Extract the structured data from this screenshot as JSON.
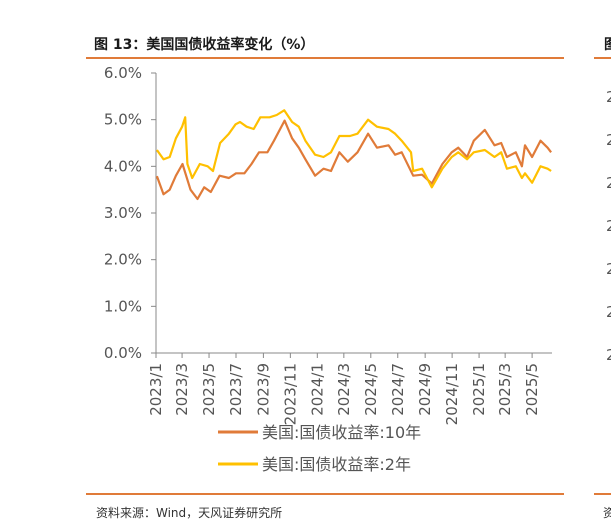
{
  "figure": {
    "title": "图 13：美国国债收益率变化（%）",
    "source": "资料来源：Wind，天风证券研究所",
    "right_title_fragment": "图",
    "right_source_fragment": "资",
    "right_ticks_fragment": [
      "2",
      "2",
      "2",
      "2",
      "2",
      "2",
      "2"
    ]
  },
  "colors": {
    "accent_rule": "#e07b39",
    "series_10y": "#e07b39",
    "series_2y": "#ffc000",
    "axis": "#888888"
  },
  "chart_data": {
    "type": "line",
    "ylim": [
      0,
      6
    ],
    "yticks": [
      "0.0%",
      "1.0%",
      "2.0%",
      "3.0%",
      "4.0%",
      "5.0%",
      "6.0%"
    ],
    "xlim": [
      "2023-01-01",
      "2025-06-15"
    ],
    "xticks": [
      "2023/1",
      "2023/3",
      "2023/5",
      "2023/7",
      "2023/9",
      "2023/11",
      "2024/1",
      "2024/3",
      "2024/5",
      "2024/7",
      "2024/9",
      "2024/11",
      "2025/1",
      "2025/3",
      "2025/5"
    ],
    "grid": false,
    "legend_position": "bottom",
    "series": [
      {
        "name": "美国:国债收益率:10年",
        "color": "#e07b39",
        "points": [
          [
            "2023-01-03",
            3.79
          ],
          [
            "2023-01-18",
            3.4
          ],
          [
            "2023-02-01",
            3.5
          ],
          [
            "2023-02-15",
            3.8
          ],
          [
            "2023-03-02",
            4.05
          ],
          [
            "2023-03-20",
            3.5
          ],
          [
            "2023-04-05",
            3.3
          ],
          [
            "2023-04-20",
            3.55
          ],
          [
            "2023-05-05",
            3.45
          ],
          [
            "2023-05-25",
            3.8
          ],
          [
            "2023-06-15",
            3.75
          ],
          [
            "2023-07-01",
            3.85
          ],
          [
            "2023-07-20",
            3.85
          ],
          [
            "2023-08-05",
            4.05
          ],
          [
            "2023-08-22",
            4.3
          ],
          [
            "2023-09-10",
            4.3
          ],
          [
            "2023-09-25",
            4.55
          ],
          [
            "2023-10-19",
            4.98
          ],
          [
            "2023-11-05",
            4.6
          ],
          [
            "2023-11-20",
            4.4
          ],
          [
            "2023-12-05",
            4.15
          ],
          [
            "2023-12-27",
            3.8
          ],
          [
            "2024-01-15",
            3.95
          ],
          [
            "2024-02-01",
            3.9
          ],
          [
            "2024-02-20",
            4.3
          ],
          [
            "2024-03-10",
            4.1
          ],
          [
            "2024-04-01",
            4.3
          ],
          [
            "2024-04-25",
            4.7
          ],
          [
            "2024-05-15",
            4.4
          ],
          [
            "2024-06-10",
            4.45
          ],
          [
            "2024-06-25",
            4.25
          ],
          [
            "2024-07-10",
            4.3
          ],
          [
            "2024-08-05",
            3.8
          ],
          [
            "2024-08-25",
            3.82
          ],
          [
            "2024-09-16",
            3.63
          ],
          [
            "2024-10-10",
            4.05
          ],
          [
            "2024-10-31",
            4.3
          ],
          [
            "2024-11-15",
            4.4
          ],
          [
            "2024-12-05",
            4.2
          ],
          [
            "2024-12-20",
            4.55
          ],
          [
            "2025-01-14",
            4.78
          ],
          [
            "2025-02-05",
            4.45
          ],
          [
            "2025-02-20",
            4.5
          ],
          [
            "2025-03-05",
            4.2
          ],
          [
            "2025-03-25",
            4.3
          ],
          [
            "2025-04-08",
            4.0
          ],
          [
            "2025-04-15",
            4.45
          ],
          [
            "2025-05-01",
            4.2
          ],
          [
            "2025-05-20",
            4.55
          ],
          [
            "2025-06-05",
            4.4
          ],
          [
            "2025-06-13",
            4.3
          ]
        ]
      },
      {
        "name": "美国:国债收益率:2年",
        "color": "#ffc000",
        "points": [
          [
            "2023-01-03",
            4.35
          ],
          [
            "2023-01-18",
            4.15
          ],
          [
            "2023-02-01",
            4.2
          ],
          [
            "2023-02-15",
            4.6
          ],
          [
            "2023-03-01",
            4.85
          ],
          [
            "2023-03-08",
            5.05
          ],
          [
            "2023-03-13",
            4.05
          ],
          [
            "2023-03-24",
            3.75
          ],
          [
            "2023-04-10",
            4.05
          ],
          [
            "2023-04-28",
            4.0
          ],
          [
            "2023-05-10",
            3.9
          ],
          [
            "2023-05-26",
            4.5
          ],
          [
            "2023-06-15",
            4.7
          ],
          [
            "2023-06-30",
            4.9
          ],
          [
            "2023-07-10",
            4.95
          ],
          [
            "2023-07-25",
            4.85
          ],
          [
            "2023-08-10",
            4.8
          ],
          [
            "2023-08-25",
            5.05
          ],
          [
            "2023-09-15",
            5.05
          ],
          [
            "2023-10-01",
            5.1
          ],
          [
            "2023-10-18",
            5.2
          ],
          [
            "2023-11-05",
            4.95
          ],
          [
            "2023-11-20",
            4.85
          ],
          [
            "2023-12-05",
            4.55
          ],
          [
            "2023-12-27",
            4.25
          ],
          [
            "2024-01-15",
            4.2
          ],
          [
            "2024-02-01",
            4.3
          ],
          [
            "2024-02-20",
            4.65
          ],
          [
            "2024-03-15",
            4.65
          ],
          [
            "2024-04-01",
            4.7
          ],
          [
            "2024-04-25",
            5.0
          ],
          [
            "2024-05-15",
            4.85
          ],
          [
            "2024-06-10",
            4.8
          ],
          [
            "2024-06-25",
            4.7
          ],
          [
            "2024-07-10",
            4.55
          ],
          [
            "2024-07-31",
            4.3
          ],
          [
            "2024-08-05",
            3.9
          ],
          [
            "2024-08-25",
            3.95
          ],
          [
            "2024-09-16",
            3.55
          ],
          [
            "2024-10-10",
            3.95
          ],
          [
            "2024-10-31",
            4.2
          ],
          [
            "2024-11-15",
            4.3
          ],
          [
            "2024-12-05",
            4.15
          ],
          [
            "2024-12-20",
            4.3
          ],
          [
            "2025-01-14",
            4.35
          ],
          [
            "2025-02-05",
            4.2
          ],
          [
            "2025-02-20",
            4.3
          ],
          [
            "2025-03-05",
            3.95
          ],
          [
            "2025-03-25",
            4.0
          ],
          [
            "2025-04-08",
            3.75
          ],
          [
            "2025-04-15",
            3.85
          ],
          [
            "2025-05-01",
            3.65
          ],
          [
            "2025-05-20",
            4.0
          ],
          [
            "2025-06-05",
            3.95
          ],
          [
            "2025-06-13",
            3.9
          ]
        ]
      }
    ]
  }
}
